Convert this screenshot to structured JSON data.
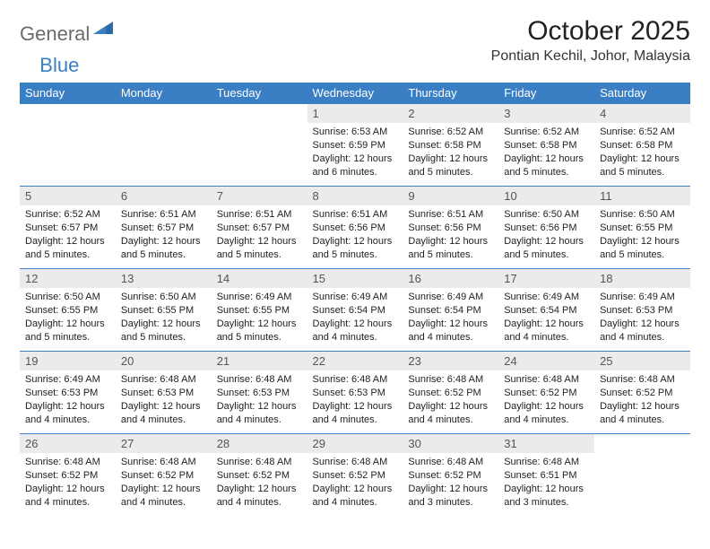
{
  "brand": {
    "textGray": "General",
    "textBlue": "Blue"
  },
  "header": {
    "title": "October 2025",
    "location": "Pontian Kechil, Johor, Malaysia"
  },
  "colors": {
    "headerBar": "#3a7fc4",
    "headerText": "#ffffff",
    "dayNumBg": "#ebebeb",
    "rowDivider": "#3a7fc4",
    "logoGray": "#6b6b6b",
    "logoBlue": "#3a7fc4"
  },
  "typography": {
    "title_fontsize": 30,
    "location_fontsize": 16,
    "dayheader_fontsize": 13,
    "body_fontsize": 11
  },
  "calendar": {
    "type": "table",
    "dayHeaders": [
      "Sunday",
      "Monday",
      "Tuesday",
      "Wednesday",
      "Thursday",
      "Friday",
      "Saturday"
    ],
    "startDayIndex": 3,
    "days": [
      {
        "n": 1,
        "sunrise": "6:53 AM",
        "sunset": "6:59 PM",
        "daylight": "12 hours and 6 minutes."
      },
      {
        "n": 2,
        "sunrise": "6:52 AM",
        "sunset": "6:58 PM",
        "daylight": "12 hours and 5 minutes."
      },
      {
        "n": 3,
        "sunrise": "6:52 AM",
        "sunset": "6:58 PM",
        "daylight": "12 hours and 5 minutes."
      },
      {
        "n": 4,
        "sunrise": "6:52 AM",
        "sunset": "6:58 PM",
        "daylight": "12 hours and 5 minutes."
      },
      {
        "n": 5,
        "sunrise": "6:52 AM",
        "sunset": "6:57 PM",
        "daylight": "12 hours and 5 minutes."
      },
      {
        "n": 6,
        "sunrise": "6:51 AM",
        "sunset": "6:57 PM",
        "daylight": "12 hours and 5 minutes."
      },
      {
        "n": 7,
        "sunrise": "6:51 AM",
        "sunset": "6:57 PM",
        "daylight": "12 hours and 5 minutes."
      },
      {
        "n": 8,
        "sunrise": "6:51 AM",
        "sunset": "6:56 PM",
        "daylight": "12 hours and 5 minutes."
      },
      {
        "n": 9,
        "sunrise": "6:51 AM",
        "sunset": "6:56 PM",
        "daylight": "12 hours and 5 minutes."
      },
      {
        "n": 10,
        "sunrise": "6:50 AM",
        "sunset": "6:56 PM",
        "daylight": "12 hours and 5 minutes."
      },
      {
        "n": 11,
        "sunrise": "6:50 AM",
        "sunset": "6:55 PM",
        "daylight": "12 hours and 5 minutes."
      },
      {
        "n": 12,
        "sunrise": "6:50 AM",
        "sunset": "6:55 PM",
        "daylight": "12 hours and 5 minutes."
      },
      {
        "n": 13,
        "sunrise": "6:50 AM",
        "sunset": "6:55 PM",
        "daylight": "12 hours and 5 minutes."
      },
      {
        "n": 14,
        "sunrise": "6:49 AM",
        "sunset": "6:55 PM",
        "daylight": "12 hours and 5 minutes."
      },
      {
        "n": 15,
        "sunrise": "6:49 AM",
        "sunset": "6:54 PM",
        "daylight": "12 hours and 4 minutes."
      },
      {
        "n": 16,
        "sunrise": "6:49 AM",
        "sunset": "6:54 PM",
        "daylight": "12 hours and 4 minutes."
      },
      {
        "n": 17,
        "sunrise": "6:49 AM",
        "sunset": "6:54 PM",
        "daylight": "12 hours and 4 minutes."
      },
      {
        "n": 18,
        "sunrise": "6:49 AM",
        "sunset": "6:53 PM",
        "daylight": "12 hours and 4 minutes."
      },
      {
        "n": 19,
        "sunrise": "6:49 AM",
        "sunset": "6:53 PM",
        "daylight": "12 hours and 4 minutes."
      },
      {
        "n": 20,
        "sunrise": "6:48 AM",
        "sunset": "6:53 PM",
        "daylight": "12 hours and 4 minutes."
      },
      {
        "n": 21,
        "sunrise": "6:48 AM",
        "sunset": "6:53 PM",
        "daylight": "12 hours and 4 minutes."
      },
      {
        "n": 22,
        "sunrise": "6:48 AM",
        "sunset": "6:53 PM",
        "daylight": "12 hours and 4 minutes."
      },
      {
        "n": 23,
        "sunrise": "6:48 AM",
        "sunset": "6:52 PM",
        "daylight": "12 hours and 4 minutes."
      },
      {
        "n": 24,
        "sunrise": "6:48 AM",
        "sunset": "6:52 PM",
        "daylight": "12 hours and 4 minutes."
      },
      {
        "n": 25,
        "sunrise": "6:48 AM",
        "sunset": "6:52 PM",
        "daylight": "12 hours and 4 minutes."
      },
      {
        "n": 26,
        "sunrise": "6:48 AM",
        "sunset": "6:52 PM",
        "daylight": "12 hours and 4 minutes."
      },
      {
        "n": 27,
        "sunrise": "6:48 AM",
        "sunset": "6:52 PM",
        "daylight": "12 hours and 4 minutes."
      },
      {
        "n": 28,
        "sunrise": "6:48 AM",
        "sunset": "6:52 PM",
        "daylight": "12 hours and 4 minutes."
      },
      {
        "n": 29,
        "sunrise": "6:48 AM",
        "sunset": "6:52 PM",
        "daylight": "12 hours and 4 minutes."
      },
      {
        "n": 30,
        "sunrise": "6:48 AM",
        "sunset": "6:52 PM",
        "daylight": "12 hours and 3 minutes."
      },
      {
        "n": 31,
        "sunrise": "6:48 AM",
        "sunset": "6:51 PM",
        "daylight": "12 hours and 3 minutes."
      }
    ],
    "labels": {
      "sunrise": "Sunrise:",
      "sunset": "Sunset:",
      "daylight": "Daylight:"
    }
  }
}
